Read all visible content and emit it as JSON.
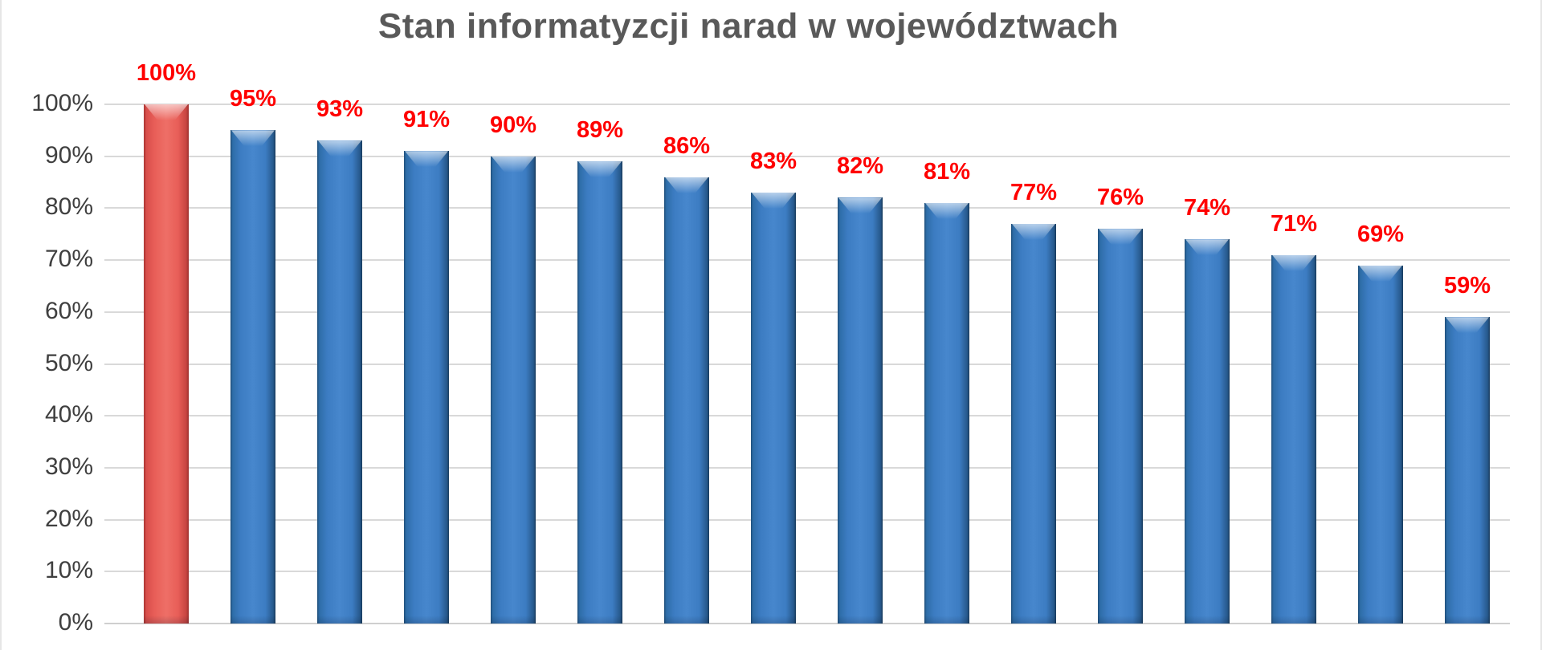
{
  "chart_data": {
    "type": "bar",
    "title": "Stan informatyzcji narad w województwach",
    "values": [
      100,
      95,
      93,
      91,
      90,
      89,
      86,
      83,
      82,
      81,
      77,
      76,
      74,
      71,
      69,
      59
    ],
    "data_labels": [
      "100%",
      "95%",
      "93%",
      "91%",
      "90%",
      "89%",
      "86%",
      "83%",
      "82%",
      "81%",
      "77%",
      "76%",
      "74%",
      "71%",
      "69%",
      "59%"
    ],
    "y_ticks": [
      "100%",
      "90%",
      "80%",
      "70%",
      "60%",
      "50%",
      "40%",
      "30%",
      "20%",
      "10%",
      "0%"
    ],
    "ylim": [
      0,
      100
    ],
    "grid": true,
    "legend": "none",
    "x_category_labels_visible": false,
    "highlight_bar_index": 0,
    "colors": {
      "bar_default": "#2E75B6",
      "bar_highlight": "#E8534E",
      "data_label": "#FF0000",
      "title_text": "#595959",
      "axis_text": "#3F3F3F",
      "gridline": "#D9D9D9"
    }
  }
}
